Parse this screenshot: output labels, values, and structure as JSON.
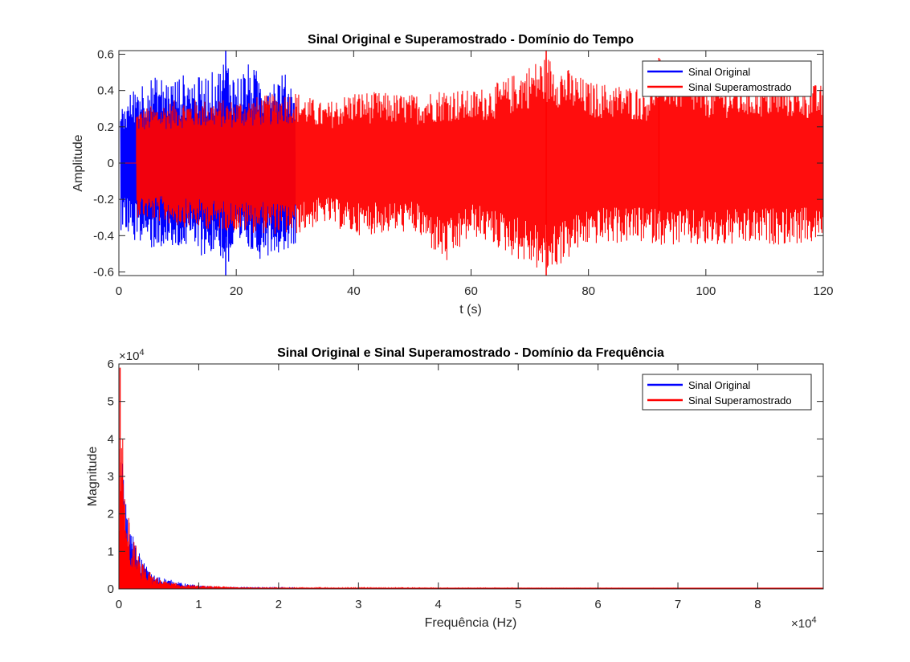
{
  "chart_data": [
    {
      "type": "line",
      "title": "Sinal Original e Superamostrado - Domínio do Tempo",
      "xlabel": "t (s)",
      "ylabel": "Amplitude",
      "xlim": [
        0,
        120
      ],
      "ylim": [
        -0.62,
        0.62
      ],
      "xticks": [
        0,
        20,
        40,
        60,
        80,
        100,
        120
      ],
      "xtick_labels": [
        "0",
        "20",
        "40",
        "60",
        "80",
        "100",
        "120"
      ],
      "yticks": [
        -0.6,
        -0.4,
        -0.2,
        0,
        0.2,
        0.4,
        0.6
      ],
      "ytick_labels": [
        "-0.6",
        "-0.4",
        "-0.2",
        "0",
        "0.2",
        "0.4",
        "0.6"
      ],
      "grid": false,
      "legend": "top-right",
      "series": [
        {
          "name": "Sinal Original",
          "color": "#0000ff",
          "x_range": [
            0,
            30
          ],
          "x": [
            0.5,
            1,
            3,
            5,
            7,
            9,
            11,
            13,
            15,
            17,
            18.2,
            20,
            22,
            24,
            26,
            28,
            30
          ],
          "y_upper": [
            0.36,
            0.33,
            0.45,
            0.47,
            0.48,
            0.46,
            0.49,
            0.47,
            0.49,
            0.52,
            0.6,
            0.48,
            0.55,
            0.5,
            0.48,
            0.5,
            0.45
          ],
          "y_lower": [
            -0.38,
            -0.37,
            -0.44,
            -0.48,
            -0.47,
            -0.5,
            -0.47,
            -0.5,
            -0.52,
            -0.5,
            -0.6,
            -0.52,
            -0.5,
            -0.53,
            -0.5,
            -0.49,
            -0.45
          ]
        },
        {
          "name": "Sinal Superamostrado",
          "color": "#ff0000",
          "x_range": [
            0,
            120
          ],
          "flat_until": 3,
          "x": [
            3,
            10,
            20,
            30,
            35,
            40,
            50,
            56,
            60,
            65,
            72.8,
            80,
            90,
            92,
            100,
            110,
            115,
            120
          ],
          "y_upper": [
            0.3,
            0.35,
            0.35,
            0.4,
            0.33,
            0.4,
            0.38,
            0.42,
            0.4,
            0.45,
            0.6,
            0.45,
            0.42,
            0.58,
            0.45,
            0.45,
            0.45,
            0.43
          ],
          "y_lower": [
            -0.3,
            -0.35,
            -0.38,
            -0.4,
            -0.33,
            -0.4,
            -0.38,
            -0.57,
            -0.4,
            -0.48,
            -0.62,
            -0.45,
            -0.44,
            -0.45,
            -0.47,
            -0.45,
            -0.45,
            -0.44
          ]
        }
      ]
    },
    {
      "type": "line",
      "title": "Sinal Original e Sinal Superamostrado - Domínio da Frequência",
      "xlabel": "Frequência (Hz)",
      "ylabel": "Magnitude",
      "xlim": [
        0,
        88200
      ],
      "ylim": [
        0,
        60000
      ],
      "x_exponent_label": "×10",
      "x_exponent": "4",
      "y_exponent_label": "×10",
      "y_exponent": "4",
      "xticks": [
        0,
        10000,
        20000,
        30000,
        40000,
        50000,
        60000,
        70000,
        80000
      ],
      "xtick_labels": [
        "0",
        "1",
        "2",
        "3",
        "4",
        "5",
        "6",
        "7",
        "8"
      ],
      "yticks": [
        0,
        10000,
        20000,
        30000,
        40000,
        50000,
        60000
      ],
      "ytick_labels": [
        "0",
        "1",
        "2",
        "3",
        "4",
        "5",
        "6"
      ],
      "grid": false,
      "legend": "top-right",
      "series": [
        {
          "name": "Sinal Original",
          "color": "#0000ff",
          "x": [
            0,
            500,
            1000,
            2000,
            4000,
            8000,
            12000,
            22050
          ],
          "y": [
            0,
            40000,
            20000,
            12000,
            4000,
            1500,
            500,
            200
          ]
        },
        {
          "name": "Sinal Superamostrado",
          "color": "#ff0000",
          "x": [
            0,
            100,
            300,
            500,
            700,
            900,
            1200,
            1500,
            2000,
            2500,
            3000,
            3500,
            4000,
            5000,
            6000,
            8000,
            10000,
            15000,
            20000,
            40000,
            88200
          ],
          "y": [
            0,
            59000,
            40000,
            50000,
            28000,
            16000,
            21000,
            12000,
            13000,
            8000,
            7000,
            4000,
            5000,
            2500,
            2000,
            1200,
            900,
            500,
            300,
            150,
            100
          ]
        }
      ]
    }
  ]
}
